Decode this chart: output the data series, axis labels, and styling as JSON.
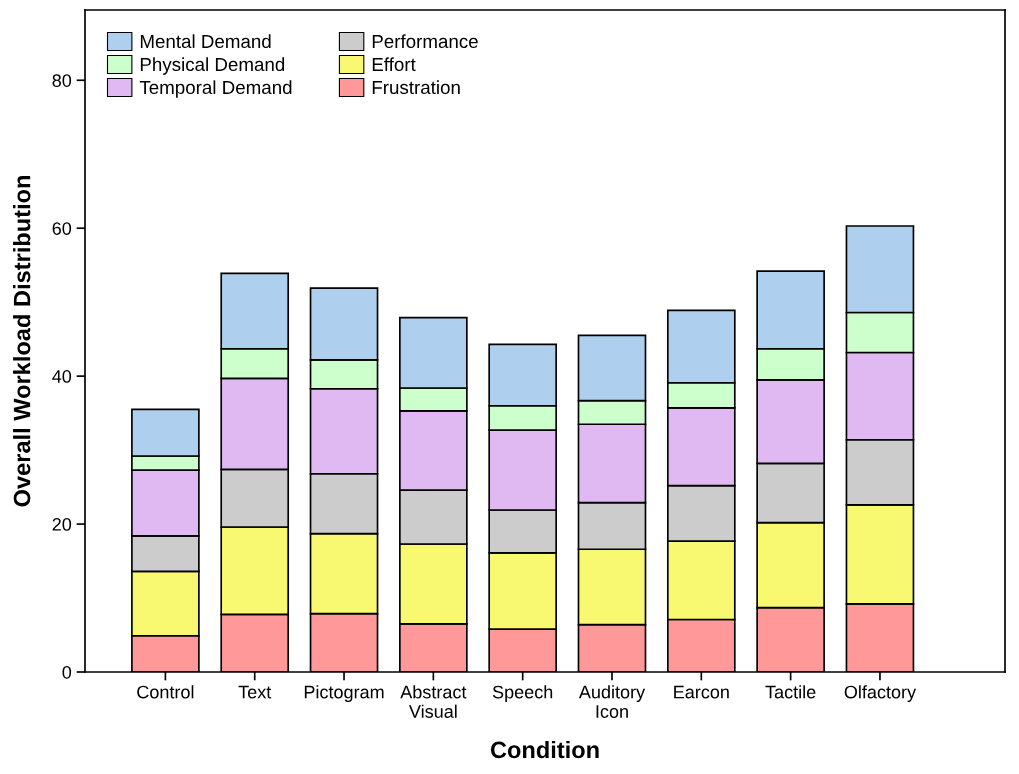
{
  "chart_data": {
    "type": "bar",
    "stacked": true,
    "xlabel": "Condition",
    "ylabel": "Overall Workload Distribution",
    "categories": [
      "Control",
      "Text",
      "Pictogram",
      "Abstract\nVisual",
      "Speech",
      "Auditory\nIcon",
      "Earcon",
      "Tactile",
      "Olfactory"
    ],
    "series": [
      {
        "name": "Frustration",
        "color": "#ff9999",
        "values": [
          4.9,
          7.8,
          7.9,
          6.5,
          5.8,
          6.4,
          7.1,
          8.7,
          9.2
        ]
      },
      {
        "name": "Effort",
        "color": "#f9f871",
        "values": [
          8.7,
          11.8,
          10.8,
          10.8,
          10.3,
          10.2,
          10.6,
          11.5,
          13.4
        ]
      },
      {
        "name": "Performance",
        "color": "#cccccc",
        "values": [
          4.8,
          7.8,
          8.1,
          7.3,
          5.8,
          6.3,
          7.5,
          8.0,
          8.8
        ]
      },
      {
        "name": "Temporal Demand",
        "color": "#e0b9f2",
        "values": [
          8.9,
          12.3,
          11.5,
          10.7,
          10.8,
          10.6,
          10.5,
          11.3,
          11.8
        ]
      },
      {
        "name": "Physical Demand",
        "color": "#ccffcc",
        "values": [
          1.9,
          4.0,
          3.9,
          3.1,
          3.3,
          3.2,
          3.4,
          4.2,
          5.4
        ]
      },
      {
        "name": "Mental Demand",
        "color": "#aed0ee",
        "values": [
          6.3,
          10.2,
          9.7,
          9.5,
          8.3,
          8.8,
          9.8,
          10.5,
          11.7
        ]
      }
    ],
    "ylim": [
      0,
      89.5
    ],
    "yticks": [
      0,
      20,
      40,
      60,
      80
    ],
    "grid": false,
    "legend": "top left"
  }
}
